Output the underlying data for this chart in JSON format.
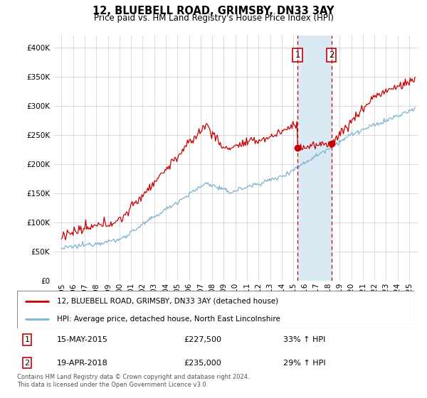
{
  "title": "12, BLUEBELL ROAD, GRIMSBY, DN33 3AY",
  "subtitle": "Price paid vs. HM Land Registry's House Price Index (HPI)",
  "legend_line1": "12, BLUEBELL ROAD, GRIMSBY, DN33 3AY (detached house)",
  "legend_line2": "HPI: Average price, detached house, North East Lincolnshire",
  "event1_label": "1",
  "event2_label": "2",
  "event1_date": "15-MAY-2015",
  "event1_price": "£227,500",
  "event1_pct": "33% ↑ HPI",
  "event2_date": "19-APR-2018",
  "event2_price": "£235,000",
  "event2_pct": "29% ↑ HPI",
  "footer": "Contains HM Land Registry data © Crown copyright and database right 2024.\nThis data is licensed under the Open Government Licence v3.0.",
  "hpi_color": "#7fb3d3",
  "price_color": "#cc0000",
  "shading_color": "#daeaf5",
  "event_line_color": "#cc0000",
  "ylim": [
    0,
    420000
  ],
  "yticks": [
    0,
    50000,
    100000,
    150000,
    200000,
    250000,
    300000,
    350000,
    400000
  ],
  "background_color": "#ffffff",
  "grid_color": "#cccccc",
  "event1_year": 2015.37,
  "event2_year": 2018.29,
  "event1_price_val": 227500,
  "event2_price_val": 235000
}
